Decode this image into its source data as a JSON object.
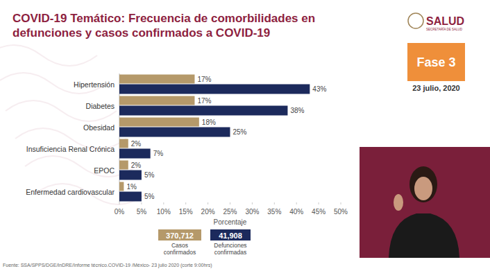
{
  "chart_data": {
    "type": "bar",
    "orientation": "horizontal",
    "title": "COVID-19 Temático: Frecuencia de comorbilidades en defunciones y casos confirmados a COVID-19",
    "logo": "SALUD",
    "logo_subtitle": "SECRETARÍA DE SALUD",
    "badge": "Fase 3",
    "date": "23 julio, 2020",
    "x_label": "Porcentaje",
    "source": "Fuente: SSA/SPPS/DGE/InDRE/Informe técnico.COVID-19 /México- 23 julio 2020 (corte 9:00hrs)",
    "categories": [
      "Hipertensión",
      "Diabetes",
      "Obesidad",
      "Insuficiencia Renal Crónica",
      "EPOC",
      "Enfermedad cardiovascular"
    ],
    "series": [
      {
        "name": "Casos confirmados",
        "color": "#b5996a",
        "values": [
          17,
          17,
          18,
          2,
          2,
          1
        ],
        "value_labels": [
          "17%",
          "17%",
          "18%",
          "2%",
          "2%",
          "1%"
        ],
        "total": {
          "value": 370712,
          "label": "370,712"
        }
      },
      {
        "name": "Defunciones confirmadas",
        "color": "#1c2a5c",
        "values": [
          43,
          38,
          25,
          7,
          5,
          5
        ],
        "value_labels": [
          "43%",
          "38%",
          "25%",
          "7%",
          "5%",
          "5%"
        ],
        "total": {
          "value": 41908,
          "label": "41,908"
        }
      }
    ],
    "xlim": [
      0,
      50
    ],
    "xticks": [
      {
        "value": 0,
        "label": "0%"
      },
      {
        "value": 5,
        "label": "5%"
      },
      {
        "value": 10,
        "label": "10%"
      },
      {
        "value": 15,
        "label": "15%"
      },
      {
        "value": 20,
        "label": "20%"
      },
      {
        "value": 25,
        "label": "25%"
      },
      {
        "value": 30,
        "label": "30%"
      },
      {
        "value": 35,
        "label": "35%"
      },
      {
        "value": 40,
        "label": "40%"
      },
      {
        "value": 45,
        "label": "45%"
      },
      {
        "value": 50,
        "label": "50%"
      }
    ],
    "grid": false,
    "data_labels": true,
    "legend": "bottom"
  }
}
